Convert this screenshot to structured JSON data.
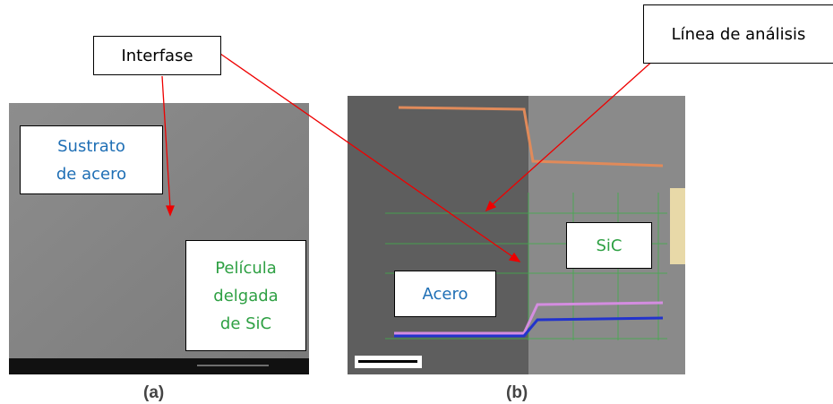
{
  "callouts": {
    "interfase": "Interfase",
    "linea": "Línea de análisis"
  },
  "panel_a": {
    "substrate": [
      "Sustrato",
      "de acero"
    ],
    "film": [
      "Película",
      "delgada",
      "de SiC"
    ],
    "caption": "(a)"
  },
  "panel_b": {
    "steel": "Acero",
    "sic": "SiC",
    "caption": "(b)"
  }
}
